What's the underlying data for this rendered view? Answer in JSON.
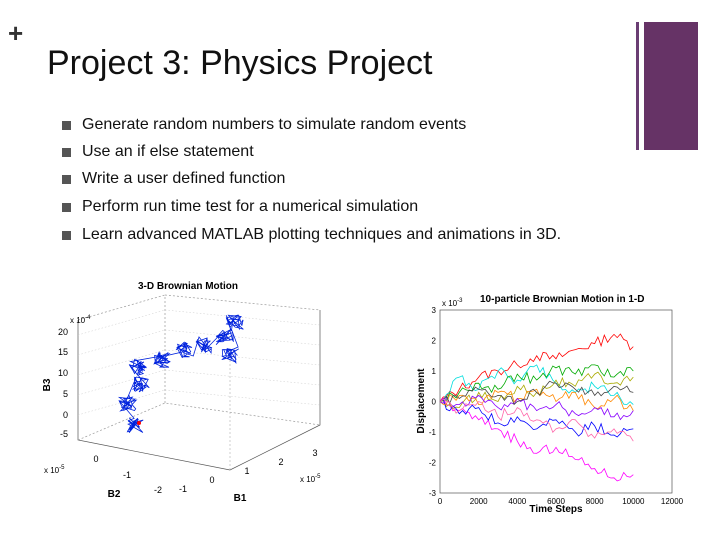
{
  "slide": {
    "plus_symbol": "+",
    "title": "Project 3: Physics Project",
    "bullets": [
      "Generate random numbers to simulate random events",
      "Use an if else statement",
      "Write a user defined function",
      "Perform run time test for a numerical simulation",
      "Learn advanced MATLAB plotting techniques and animations in 3D."
    ],
    "accent_color": "#663366"
  },
  "chart_data": [
    {
      "type": "scatter3d",
      "title": "3-D Brownian Motion",
      "xlabel": "B1",
      "ylabel": "B2",
      "zlabel": "B3",
      "x_exponent_label": "x 10",
      "x_exponent": "-5",
      "y_exponent_label": "x 10",
      "y_exponent": "-5",
      "z_exponent_label": "x 10",
      "z_exponent": "-4",
      "x_ticks": [
        "-1",
        "0",
        "1",
        "2",
        "3"
      ],
      "y_ticks": [
        "-2",
        "-1",
        "0"
      ],
      "z_ticks": [
        "-5",
        "0",
        "5",
        "10",
        "15",
        "20"
      ],
      "series_color": "#0022dd",
      "endpoint_color": "#ff0000",
      "grid": true
    },
    {
      "type": "line",
      "title": "10-particle Brownian Motion in 1-D",
      "title_exponent_label": "x 10",
      "title_exponent": "-3",
      "xlabel": "Time Steps",
      "ylabel": "Displacement",
      "x_ticks": [
        "0",
        "2000",
        "4000",
        "6000",
        "8000",
        "10000",
        "12000"
      ],
      "y_ticks": [
        "-3",
        "-2",
        "-1",
        "0",
        "1",
        "2",
        "3"
      ],
      "xlim": [
        0,
        12000
      ],
      "ylim": [
        -3,
        3
      ],
      "grid": false,
      "series": [
        {
          "color": "#ff0000",
          "values": [
            0.0,
            0.4,
            0.8,
            1.0,
            1.2,
            1.5,
            1.4,
            1.7,
            1.9,
            2.2,
            1.8
          ]
        },
        {
          "color": "#ff00ff",
          "values": [
            0.0,
            -0.3,
            -0.6,
            -0.9,
            -1.3,
            -1.7,
            -1.5,
            -1.9,
            -2.2,
            -2.5,
            -2.4
          ]
        },
        {
          "color": "#00dddd",
          "values": [
            0.0,
            0.8,
            0.4,
            1.0,
            0.7,
            1.2,
            0.6,
            0.3,
            0.5,
            0.2,
            -0.1
          ]
        },
        {
          "color": "#00aa00",
          "values": [
            0.0,
            0.3,
            0.6,
            0.4,
            0.9,
            0.7,
            1.1,
            0.9,
            1.2,
            0.8,
            1.0
          ]
        },
        {
          "color": "#aaaa00",
          "values": [
            0.0,
            -0.2,
            0.3,
            0.0,
            0.5,
            0.3,
            0.7,
            0.5,
            0.9,
            0.6,
            0.8
          ]
        },
        {
          "color": "#0000ff",
          "values": [
            0.0,
            -0.4,
            -0.2,
            -0.7,
            -0.5,
            -0.9,
            -0.6,
            -1.0,
            -0.8,
            -1.1,
            -0.9
          ]
        },
        {
          "color": "#ff8800",
          "values": [
            0.0,
            0.2,
            -0.1,
            0.3,
            0.1,
            0.4,
            0.0,
            0.3,
            -0.2,
            0.1,
            -0.3
          ]
        },
        {
          "color": "#8800ff",
          "values": [
            0.0,
            -0.1,
            0.2,
            -0.2,
            0.1,
            -0.3,
            -0.1,
            -0.4,
            -0.2,
            -0.5,
            -0.3
          ]
        },
        {
          "color": "#444444",
          "values": [
            0.0,
            0.1,
            0.4,
            0.2,
            0.0,
            0.3,
            0.6,
            0.4,
            0.2,
            0.5,
            0.3
          ]
        },
        {
          "color": "#ff66aa",
          "values": [
            0.0,
            -0.3,
            0.0,
            -0.5,
            -0.2,
            -0.6,
            -0.9,
            -0.6,
            -1.2,
            -0.9,
            -1.3
          ]
        }
      ]
    }
  ]
}
